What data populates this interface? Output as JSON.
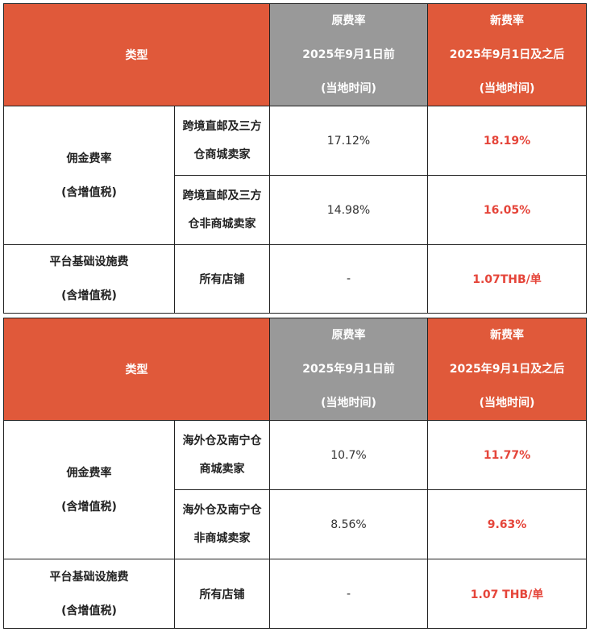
{
  "tables": [
    {
      "header": {
        "type": "类型",
        "old": [
          "原费率",
          "2025年9月1日前",
          "(当地时间)"
        ],
        "new": [
          "新费率",
          "2025年9月1日及之后",
          "(当地时间)"
        ]
      },
      "commission": {
        "label": [
          "佣金费率",
          "(含增值税)"
        ],
        "rows": [
          {
            "store": [
              "跨境直邮及三方",
              "仓商城卖家"
            ],
            "old": "17.12%",
            "new": "18.19%"
          },
          {
            "store": [
              "跨境直邮及三方",
              "仓非商城卖家"
            ],
            "old": "14.98%",
            "new": "16.05%"
          }
        ]
      },
      "platform": {
        "label": [
          "平台基础设施费",
          "(含增值税)"
        ],
        "store": "所有店铺",
        "old": "-",
        "new": "1.07THB/单"
      }
    },
    {
      "header": {
        "type": "类型",
        "old": [
          "原费率",
          "2025年9月1日前",
          "(当地时间)"
        ],
        "new": [
          "新费率",
          "2025年9月1日及之后",
          "(当地时间)"
        ]
      },
      "commission": {
        "label": [
          "佣金费率",
          "(含增值税)"
        ],
        "rows": [
          {
            "store": [
              "海外仓及南宁仓",
              "商城卖家"
            ],
            "old": "10.7%",
            "new": "11.77%"
          },
          {
            "store": [
              "海外仓及南宁仓",
              "非商城卖家"
            ],
            "old": "8.56%",
            "new": "9.63%"
          }
        ]
      },
      "platform": {
        "label": [
          "平台基础设施费",
          "(含增值税)"
        ],
        "store": "所有店铺",
        "old": "-",
        "new": "1.07 THB/单"
      }
    }
  ],
  "colors": {
    "header_orange": "#e0593a",
    "header_gray": "#999999",
    "highlight_red": "#e5453a"
  }
}
